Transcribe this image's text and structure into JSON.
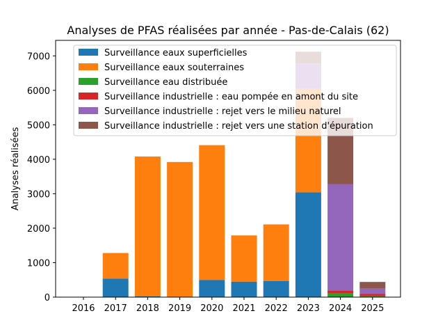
{
  "chart_data": {
    "type": "bar",
    "stacked": true,
    "title": "Analyses de PFAS réalisées par année - Pas-de-Calais (62)",
    "xlabel": "",
    "ylabel": "Analyses réalisées",
    "categories": [
      "2016",
      "2017",
      "2018",
      "2019",
      "2020",
      "2021",
      "2022",
      "2023",
      "2024",
      "2025"
    ],
    "ylim": [
      0,
      7450
    ],
    "yticks": [
      0,
      1000,
      2000,
      3000,
      4000,
      5000,
      6000,
      7000
    ],
    "legend_position": "top",
    "grid": false,
    "series": [
      {
        "name": "Surveillance eaux superficielles",
        "color": "#1f77b4",
        "values": [
          0,
          540,
          20,
          0,
          500,
          450,
          470,
          3040,
          0,
          0
        ]
      },
      {
        "name": "Surveillance eaux souterraines",
        "color": "#ff7f0e",
        "values": [
          0,
          740,
          4060,
          3920,
          3910,
          1340,
          1640,
          3010,
          0,
          0
        ]
      },
      {
        "name": "Surveillance eau distribuée",
        "color": "#2ca02c",
        "values": [
          0,
          0,
          0,
          0,
          0,
          0,
          0,
          0,
          110,
          40
        ]
      },
      {
        "name": "Surveillance industrielle : eau pompée en amont du site",
        "color": "#d62728",
        "values": [
          0,
          0,
          0,
          0,
          0,
          0,
          0,
          0,
          80,
          50
        ]
      },
      {
        "name": "Surveillance industrielle : rejet vers le milieu naturel",
        "color": "#9467bd",
        "values": [
          0,
          0,
          0,
          0,
          0,
          0,
          0,
          730,
          3090,
          160
        ]
      },
      {
        "name": "Surveillance industrielle : rejet vers une station d'épuration",
        "color": "#8c564b",
        "values": [
          0,
          0,
          0,
          0,
          0,
          0,
          0,
          340,
          1920,
          190
        ]
      }
    ]
  }
}
